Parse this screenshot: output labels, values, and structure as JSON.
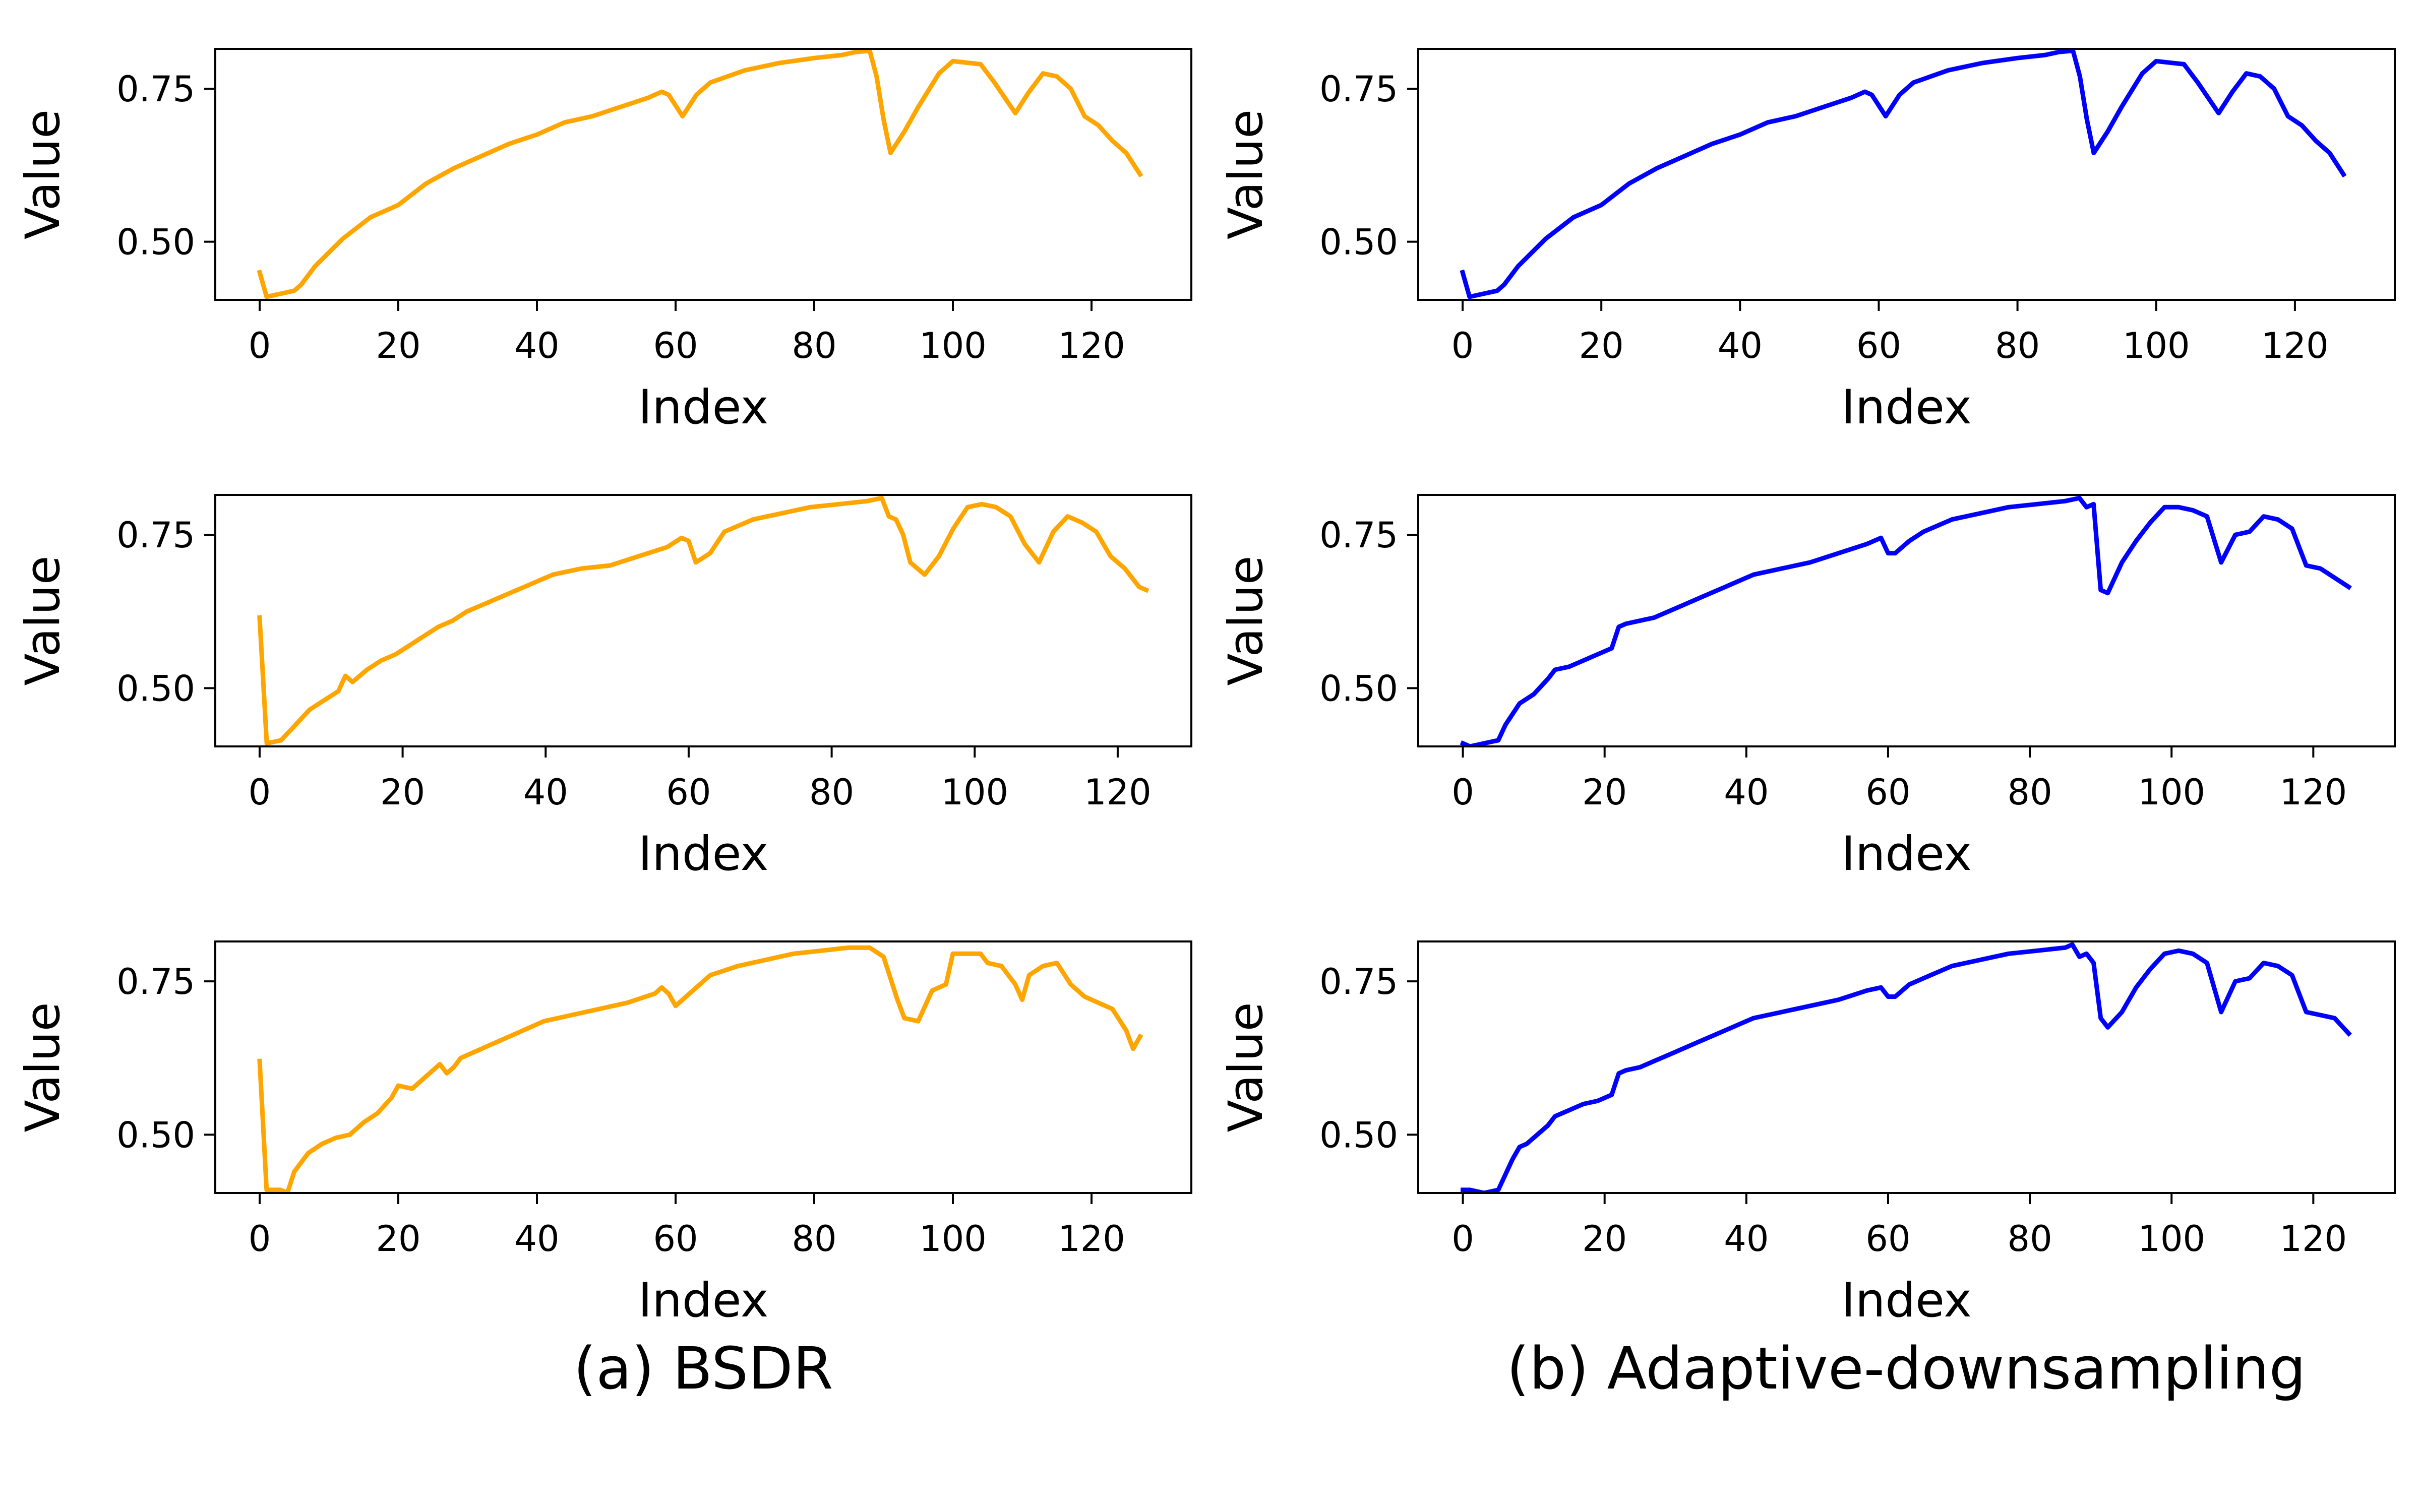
{
  "captions": [
    "(a) BSDR",
    "(b) Adaptive-downsampling"
  ],
  "colors": {
    "left": "#FFA500",
    "right": "#0000FF"
  },
  "chart_data": [
    {
      "type": "line",
      "column": 0,
      "row": 0,
      "color": "#FFA500",
      "xlabel": "Index",
      "ylabel": "Value",
      "xlim": [
        -6.4,
        134.4
      ],
      "ylim": [
        0.405,
        0.815
      ],
      "xticks": [
        0,
        20,
        40,
        60,
        80,
        100,
        120
      ],
      "yticks": [
        0.5,
        0.75
      ],
      "xtick_labels": [
        "0",
        "20",
        "40",
        "60",
        "80",
        "100",
        "120"
      ],
      "ytick_labels": [
        "0.50",
        "0.75"
      ],
      "x": [
        0,
        1,
        3,
        5,
        6,
        8,
        12,
        16,
        18,
        20,
        24,
        28,
        32,
        36,
        40,
        44,
        48,
        52,
        56,
        58,
        59,
        61,
        63,
        65,
        70,
        75,
        80,
        84,
        86,
        88,
        89,
        90,
        91,
        93,
        95,
        98,
        100,
        104,
        106,
        109,
        111,
        113,
        115,
        117,
        119,
        121,
        123,
        125,
        127
      ],
      "y": [
        0.45,
        0.41,
        0.415,
        0.42,
        0.43,
        0.46,
        0.505,
        0.54,
        0.55,
        0.56,
        0.595,
        0.62,
        0.64,
        0.66,
        0.675,
        0.695,
        0.705,
        0.72,
        0.735,
        0.745,
        0.74,
        0.705,
        0.74,
        0.76,
        0.78,
        0.792,
        0.8,
        0.805,
        0.81,
        0.812,
        0.77,
        0.7,
        0.645,
        0.68,
        0.72,
        0.775,
        0.795,
        0.79,
        0.76,
        0.71,
        0.745,
        0.775,
        0.77,
        0.75,
        0.705,
        0.69,
        0.665,
        0.645,
        0.61
      ]
    },
    {
      "type": "line",
      "column": 1,
      "row": 0,
      "color": "#0000FF",
      "xlabel": "Index",
      "ylabel": "Value",
      "xlim": [
        -6.4,
        134.4
      ],
      "ylim": [
        0.405,
        0.815
      ],
      "xticks": [
        0,
        20,
        40,
        60,
        80,
        100,
        120
      ],
      "yticks": [
        0.5,
        0.75
      ],
      "xtick_labels": [
        "0",
        "20",
        "40",
        "60",
        "80",
        "100",
        "120"
      ],
      "ytick_labels": [
        "0.50",
        "0.75"
      ],
      "x": [
        0,
        1,
        3,
        5,
        6,
        8,
        12,
        16,
        18,
        20,
        24,
        28,
        32,
        36,
        40,
        44,
        48,
        52,
        56,
        58,
        59,
        61,
        63,
        65,
        70,
        75,
        80,
        84,
        86,
        88,
        89,
        90,
        91,
        93,
        95,
        98,
        100,
        104,
        106,
        109,
        111,
        113,
        115,
        117,
        119,
        121,
        123,
        125,
        127
      ],
      "y": [
        0.45,
        0.41,
        0.415,
        0.42,
        0.43,
        0.46,
        0.505,
        0.54,
        0.55,
        0.56,
        0.595,
        0.62,
        0.64,
        0.66,
        0.675,
        0.695,
        0.705,
        0.72,
        0.735,
        0.745,
        0.74,
        0.705,
        0.74,
        0.76,
        0.78,
        0.792,
        0.8,
        0.805,
        0.81,
        0.812,
        0.77,
        0.7,
        0.645,
        0.68,
        0.72,
        0.775,
        0.795,
        0.79,
        0.76,
        0.71,
        0.745,
        0.775,
        0.77,
        0.75,
        0.705,
        0.69,
        0.665,
        0.645,
        0.61
      ]
    },
    {
      "type": "line",
      "column": 0,
      "row": 1,
      "color": "#FFA500",
      "xlabel": "Index",
      "ylabel": "Value",
      "xlim": [
        -6.2,
        130.3
      ],
      "ylim": [
        0.405,
        0.815
      ],
      "xticks": [
        0,
        20,
        40,
        60,
        80,
        100,
        120
      ],
      "yticks": [
        0.5,
        0.75
      ],
      "xtick_labels": [
        "0",
        "20",
        "40",
        "60",
        "80",
        "100",
        "120"
      ],
      "ytick_labels": [
        "0.50",
        "0.75"
      ],
      "x": [
        0,
        1,
        3,
        5,
        7,
        9,
        11,
        12,
        13,
        15,
        17,
        19,
        21,
        23,
        25,
        27,
        29,
        31,
        33,
        35,
        37,
        39,
        41,
        45,
        49,
        53,
        57,
        59,
        60,
        61,
        63,
        65,
        69,
        73,
        77,
        81,
        85,
        87,
        88,
        89,
        90,
        91,
        93,
        95,
        97,
        99,
        101,
        103,
        105,
        107,
        109,
        111,
        113,
        115,
        117,
        119,
        121,
        123,
        124
      ],
      "y": [
        0.615,
        0.41,
        0.415,
        0.44,
        0.465,
        0.48,
        0.495,
        0.52,
        0.51,
        0.53,
        0.545,
        0.555,
        0.57,
        0.585,
        0.6,
        0.61,
        0.625,
        0.635,
        0.645,
        0.655,
        0.665,
        0.675,
        0.685,
        0.695,
        0.7,
        0.715,
        0.73,
        0.745,
        0.74,
        0.705,
        0.72,
        0.755,
        0.775,
        0.785,
        0.795,
        0.8,
        0.805,
        0.81,
        0.78,
        0.775,
        0.75,
        0.705,
        0.685,
        0.715,
        0.76,
        0.795,
        0.8,
        0.795,
        0.78,
        0.735,
        0.705,
        0.755,
        0.78,
        0.77,
        0.755,
        0.715,
        0.695,
        0.665,
        0.66
      ]
    },
    {
      "type": "line",
      "column": 1,
      "row": 1,
      "color": "#0000FF",
      "xlabel": "Index",
      "ylabel": "Value",
      "xlim": [
        -6.3,
        131.5
      ],
      "ylim": [
        0.405,
        0.815
      ],
      "xticks": [
        0,
        20,
        40,
        60,
        80,
        100,
        120
      ],
      "yticks": [
        0.5,
        0.75
      ],
      "xtick_labels": [
        "0",
        "20",
        "40",
        "60",
        "80",
        "100",
        "120"
      ],
      "ytick_labels": [
        "0.50",
        "0.75"
      ],
      "x": [
        0,
        1,
        3,
        5,
        6,
        8,
        10,
        12,
        13,
        15,
        17,
        19,
        21,
        22,
        23,
        25,
        27,
        29,
        31,
        33,
        35,
        37,
        39,
        41,
        45,
        49,
        53,
        57,
        59,
        60,
        61,
        63,
        65,
        69,
        73,
        77,
        81,
        85,
        87,
        88,
        89,
        90,
        91,
        93,
        95,
        97,
        99,
        101,
        103,
        105,
        107,
        109,
        111,
        113,
        115,
        117,
        119,
        121,
        123,
        125
      ],
      "y": [
        0.41,
        0.405,
        0.41,
        0.415,
        0.44,
        0.475,
        0.49,
        0.515,
        0.53,
        0.535,
        0.545,
        0.555,
        0.565,
        0.6,
        0.605,
        0.61,
        0.615,
        0.625,
        0.635,
        0.645,
        0.655,
        0.665,
        0.675,
        0.685,
        0.695,
        0.705,
        0.72,
        0.735,
        0.745,
        0.72,
        0.72,
        0.74,
        0.755,
        0.775,
        0.785,
        0.795,
        0.8,
        0.805,
        0.81,
        0.795,
        0.8,
        0.66,
        0.655,
        0.705,
        0.74,
        0.77,
        0.795,
        0.795,
        0.79,
        0.78,
        0.705,
        0.75,
        0.755,
        0.78,
        0.775,
        0.76,
        0.7,
        0.695,
        0.68,
        0.665
      ]
    },
    {
      "type": "line",
      "column": 0,
      "row": 2,
      "color": "#FFA500",
      "xlabel": "Index",
      "ylabel": "Value",
      "xlim": [
        -6.4,
        134.4
      ],
      "ylim": [
        0.405,
        0.815
      ],
      "xticks": [
        0,
        20,
        40,
        60,
        80,
        100,
        120
      ],
      "yticks": [
        0.5,
        0.75
      ],
      "xtick_labels": [
        "0",
        "20",
        "40",
        "60",
        "80",
        "100",
        "120"
      ],
      "ytick_labels": [
        "0.50",
        "0.75"
      ],
      "x": [
        0,
        1,
        3,
        4,
        5,
        7,
        9,
        11,
        13,
        15,
        17,
        19,
        20,
        22,
        24,
        26,
        27,
        28,
        29,
        31,
        33,
        35,
        37,
        39,
        41,
        43,
        45,
        49,
        53,
        57,
        58,
        59,
        60,
        61,
        63,
        65,
        69,
        73,
        77,
        81,
        85,
        88,
        90,
        92,
        93,
        95,
        97,
        99,
        100,
        104,
        105,
        107,
        109,
        110,
        111,
        113,
        115,
        117,
        119,
        121,
        123,
        125,
        126,
        127
      ],
      "y": [
        0.62,
        0.41,
        0.41,
        0.405,
        0.44,
        0.47,
        0.485,
        0.495,
        0.5,
        0.52,
        0.535,
        0.56,
        0.58,
        0.575,
        0.595,
        0.615,
        0.6,
        0.61,
        0.625,
        0.635,
        0.645,
        0.655,
        0.665,
        0.675,
        0.685,
        0.69,
        0.695,
        0.705,
        0.715,
        0.73,
        0.74,
        0.73,
        0.71,
        0.72,
        0.74,
        0.76,
        0.775,
        0.785,
        0.795,
        0.8,
        0.805,
        0.805,
        0.79,
        0.72,
        0.69,
        0.685,
        0.735,
        0.745,
        0.795,
        0.795,
        0.78,
        0.775,
        0.745,
        0.72,
        0.76,
        0.775,
        0.78,
        0.745,
        0.725,
        0.715,
        0.705,
        0.67,
        0.64,
        0.66
      ]
    },
    {
      "type": "line",
      "column": 1,
      "row": 2,
      "color": "#0000FF",
      "xlabel": "Index",
      "ylabel": "Value",
      "xlim": [
        -6.3,
        131.5
      ],
      "ylim": [
        0.405,
        0.815
      ],
      "xticks": [
        0,
        20,
        40,
        60,
        80,
        100,
        120
      ],
      "yticks": [
        0.5,
        0.75
      ],
      "xtick_labels": [
        "0",
        "20",
        "40",
        "60",
        "80",
        "100",
        "120"
      ],
      "ytick_labels": [
        "0.50",
        "0.75"
      ],
      "x": [
        0,
        1,
        3,
        5,
        6,
        7,
        8,
        9,
        10,
        12,
        13,
        15,
        17,
        19,
        21,
        22,
        23,
        25,
        27,
        29,
        31,
        33,
        35,
        37,
        39,
        41,
        45,
        49,
        53,
        57,
        59,
        60,
        61,
        63,
        65,
        69,
        73,
        77,
        81,
        85,
        86,
        87,
        88,
        89,
        90,
        91,
        93,
        95,
        97,
        99,
        101,
        103,
        105,
        107,
        109,
        111,
        113,
        115,
        117,
        119,
        121,
        123,
        125
      ],
      "y": [
        0.41,
        0.41,
        0.405,
        0.41,
        0.435,
        0.46,
        0.48,
        0.485,
        0.495,
        0.515,
        0.53,
        0.54,
        0.55,
        0.555,
        0.565,
        0.6,
        0.605,
        0.61,
        0.62,
        0.63,
        0.64,
        0.65,
        0.66,
        0.67,
        0.68,
        0.69,
        0.7,
        0.71,
        0.72,
        0.735,
        0.74,
        0.725,
        0.725,
        0.745,
        0.755,
        0.775,
        0.785,
        0.795,
        0.8,
        0.805,
        0.81,
        0.79,
        0.795,
        0.78,
        0.69,
        0.675,
        0.7,
        0.74,
        0.77,
        0.795,
        0.8,
        0.795,
        0.78,
        0.7,
        0.75,
        0.755,
        0.78,
        0.775,
        0.76,
        0.7,
        0.695,
        0.69,
        0.665
      ]
    }
  ]
}
